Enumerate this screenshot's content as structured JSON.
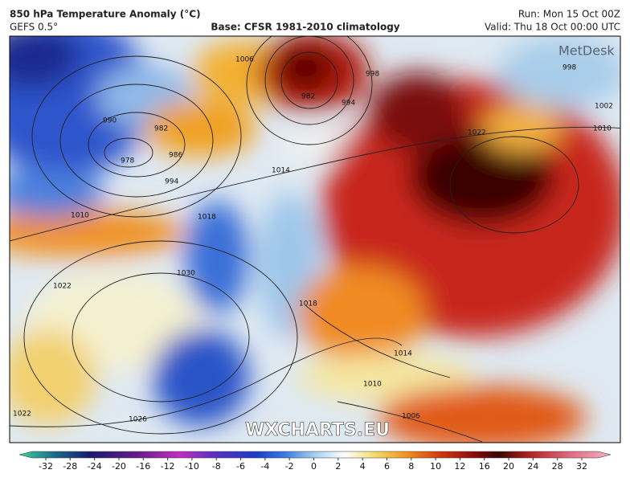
{
  "header": {
    "title": "850 hPa Temperature Anomaly (°C)",
    "model": "GEFS 0.5°",
    "base": "Base: CFSR 1981-2010 climatology",
    "run": "Run: Mon 15 Oct 00Z",
    "valid": "Valid: Thu 18 Oct 00:00 UTC"
  },
  "map": {
    "logo": "MetDesk",
    "watermark": "WXCHARTS.EU",
    "isobar_labels": [
      1006,
      990,
      982,
      978,
      986,
      994,
      982,
      994,
      998,
      1014,
      1010,
      1018,
      1022,
      1030,
      1018,
      1026,
      1022,
      1014,
      1010,
      1006,
      1022,
      1002,
      1010,
      998
    ]
  },
  "colorbar": {
    "ticks": [
      -32,
      -28,
      -24,
      -20,
      -16,
      -12,
      -10,
      -8,
      -6,
      -4,
      -2,
      0,
      2,
      4,
      6,
      8,
      10,
      12,
      16,
      20,
      24,
      28,
      32
    ]
  }
}
